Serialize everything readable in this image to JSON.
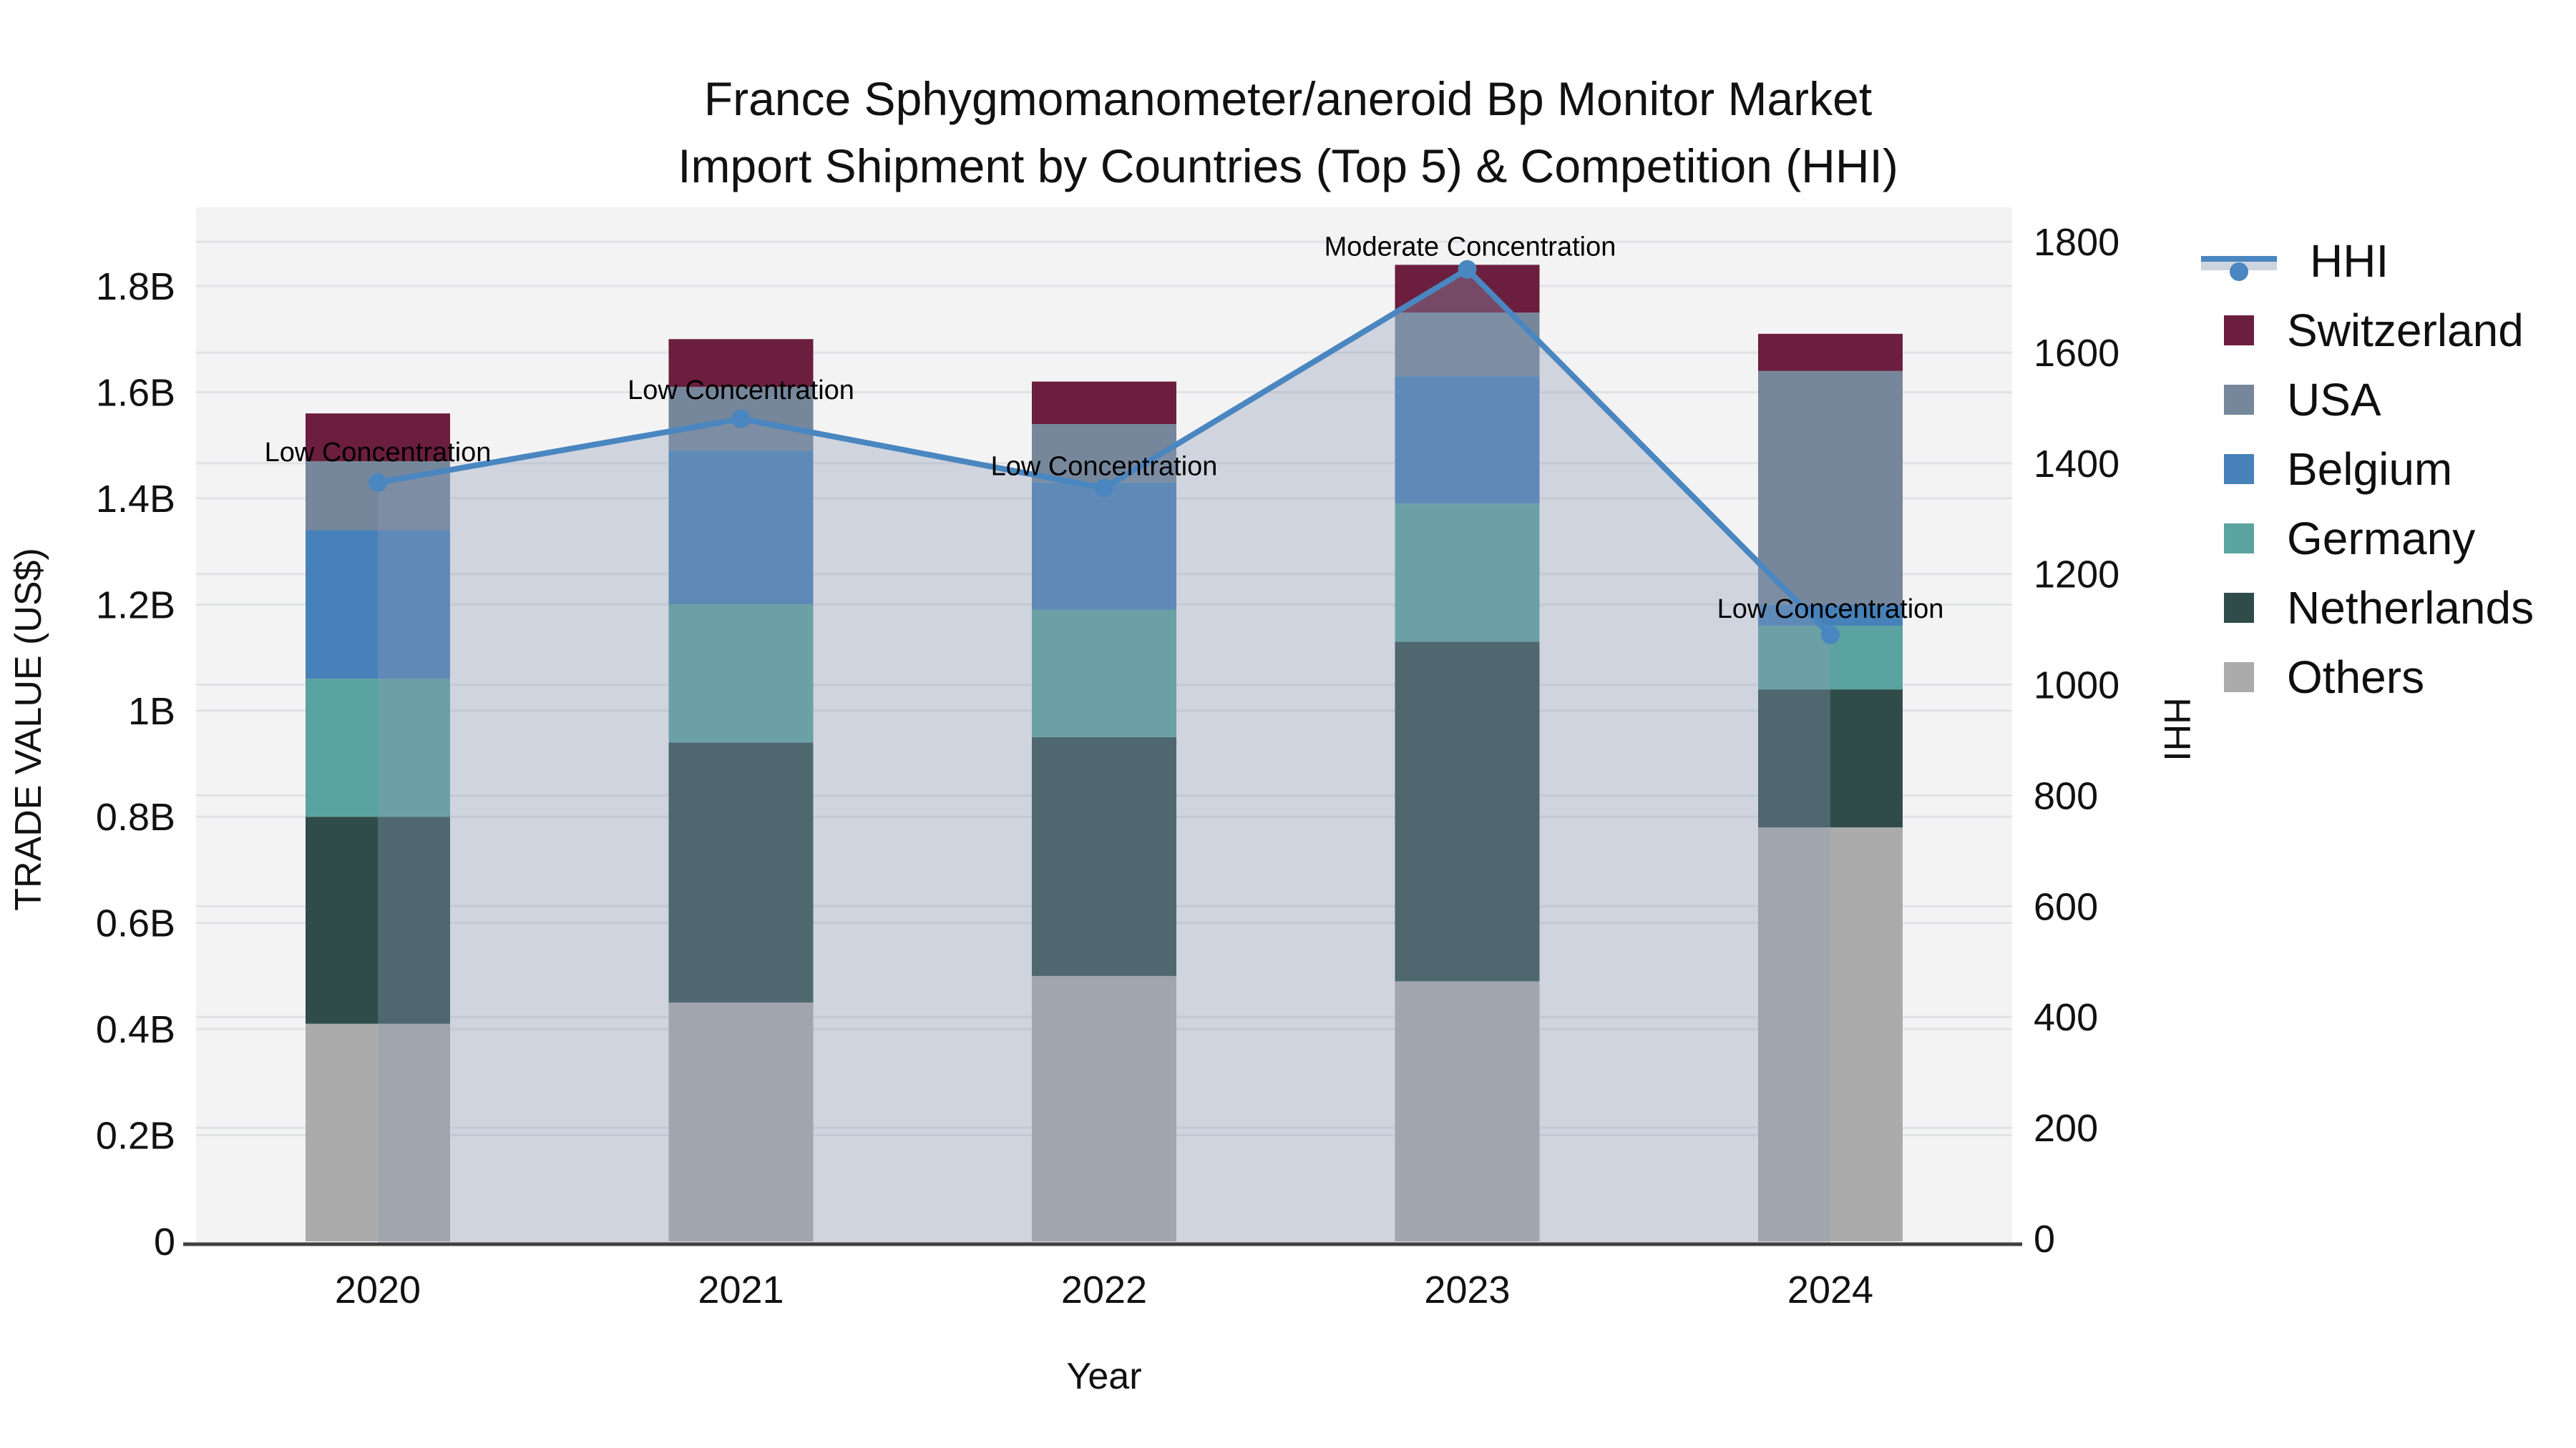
{
  "title": {
    "line1": "France Sphygmomanometer/aneroid Bp Monitor Market",
    "line2": "Import Shipment by Countries (Top 5) & Competition (HHI)"
  },
  "axes": {
    "left_label": "TRADE VALUE (US$)",
    "right_label": "HHI",
    "x_label": "Year",
    "left_ticks": [
      "0",
      "0.2B",
      "0.4B",
      "0.6B",
      "0.8B",
      "1B",
      "1.2B",
      "1.4B",
      "1.6B",
      "1.8B"
    ],
    "right_ticks": [
      "0",
      "200",
      "400",
      "600",
      "800",
      "1000",
      "1200",
      "1400",
      "1600",
      "1800"
    ],
    "x_ticks": [
      "2020",
      "2021",
      "2022",
      "2023",
      "2024"
    ]
  },
  "legend": {
    "items": [
      {
        "label": "HHI",
        "color": "#4a86c0",
        "type": "line"
      },
      {
        "label": "Switzerland",
        "color": "#6b1e3d",
        "type": "bar"
      },
      {
        "label": "USA",
        "color": "#76879b",
        "type": "bar"
      },
      {
        "label": "Belgium",
        "color": "#4781b9",
        "type": "bar"
      },
      {
        "label": "Germany",
        "color": "#5ba3a0",
        "type": "bar"
      },
      {
        "label": "Netherlands",
        "color": "#2f4c49",
        "type": "bar"
      },
      {
        "label": "Others",
        "color": "#ababab",
        "type": "bar"
      }
    ]
  },
  "colors": {
    "plot_bg": "#f3f3f4",
    "fig_bg": "#ffffff",
    "gridline": "#e1e2e5",
    "axis_line": "#3f3f3f",
    "hhi_line": "#4a86c0",
    "area_fill": "rgba(140,155,180,0.35)",
    "tick_text": "#111111",
    "annotation_text": "#000000"
  },
  "chart_data": {
    "type": "combo",
    "bar_mode": "stacked",
    "title": "France Sphygmomanometer/aneroid Bp Monitor Market Import Shipment by Countries (Top 5) & Competition (HHI)",
    "x": [
      "2020",
      "2021",
      "2022",
      "2023",
      "2024"
    ],
    "bar_value_unit": "billion US$",
    "series": [
      {
        "name": "Others",
        "color": "#ababab",
        "values": [
          0.41,
          0.45,
          0.5,
          0.49,
          0.78
        ]
      },
      {
        "name": "Netherlands",
        "color": "#2f4c49",
        "values": [
          0.39,
          0.49,
          0.45,
          0.64,
          0.26
        ]
      },
      {
        "name": "Germany",
        "color": "#5ba3a0",
        "values": [
          0.26,
          0.26,
          0.24,
          0.26,
          0.12
        ]
      },
      {
        "name": "Belgium",
        "color": "#4781b9",
        "values": [
          0.28,
          0.29,
          0.24,
          0.24,
          0.04
        ]
      },
      {
        "name": "USA",
        "color": "#76879b",
        "values": [
          0.13,
          0.12,
          0.11,
          0.12,
          0.44
        ]
      },
      {
        "name": "Switzerland",
        "color": "#6b1e3d",
        "values": [
          0.09,
          0.09,
          0.08,
          0.09,
          0.07
        ]
      }
    ],
    "bar_totals": [
      1.56,
      1.7,
      1.62,
      1.84,
      1.71
    ],
    "line_series": {
      "name": "HHI",
      "axis": "right",
      "color": "#4a86c0",
      "values": [
        1365,
        1480,
        1355,
        1750,
        1090
      ]
    },
    "y_left": {
      "label": "TRADE VALUE (US$)",
      "range": [
        0,
        1.94
      ],
      "tick_step": 0.2
    },
    "y_right": {
      "label": "HHI",
      "range": [
        0,
        1878
      ],
      "tick_step": 200
    },
    "x_label": "Year",
    "legend_position": "right",
    "grid": true,
    "annotations": [
      {
        "x": "2020",
        "text": "Low Concentration"
      },
      {
        "x": "2021",
        "text": "Low Concentration"
      },
      {
        "x": "2022",
        "text": "Low Concentration"
      },
      {
        "x": "2023",
        "text": "Moderate Concentration"
      },
      {
        "x": "2024",
        "text": "Low Concentration"
      }
    ]
  }
}
